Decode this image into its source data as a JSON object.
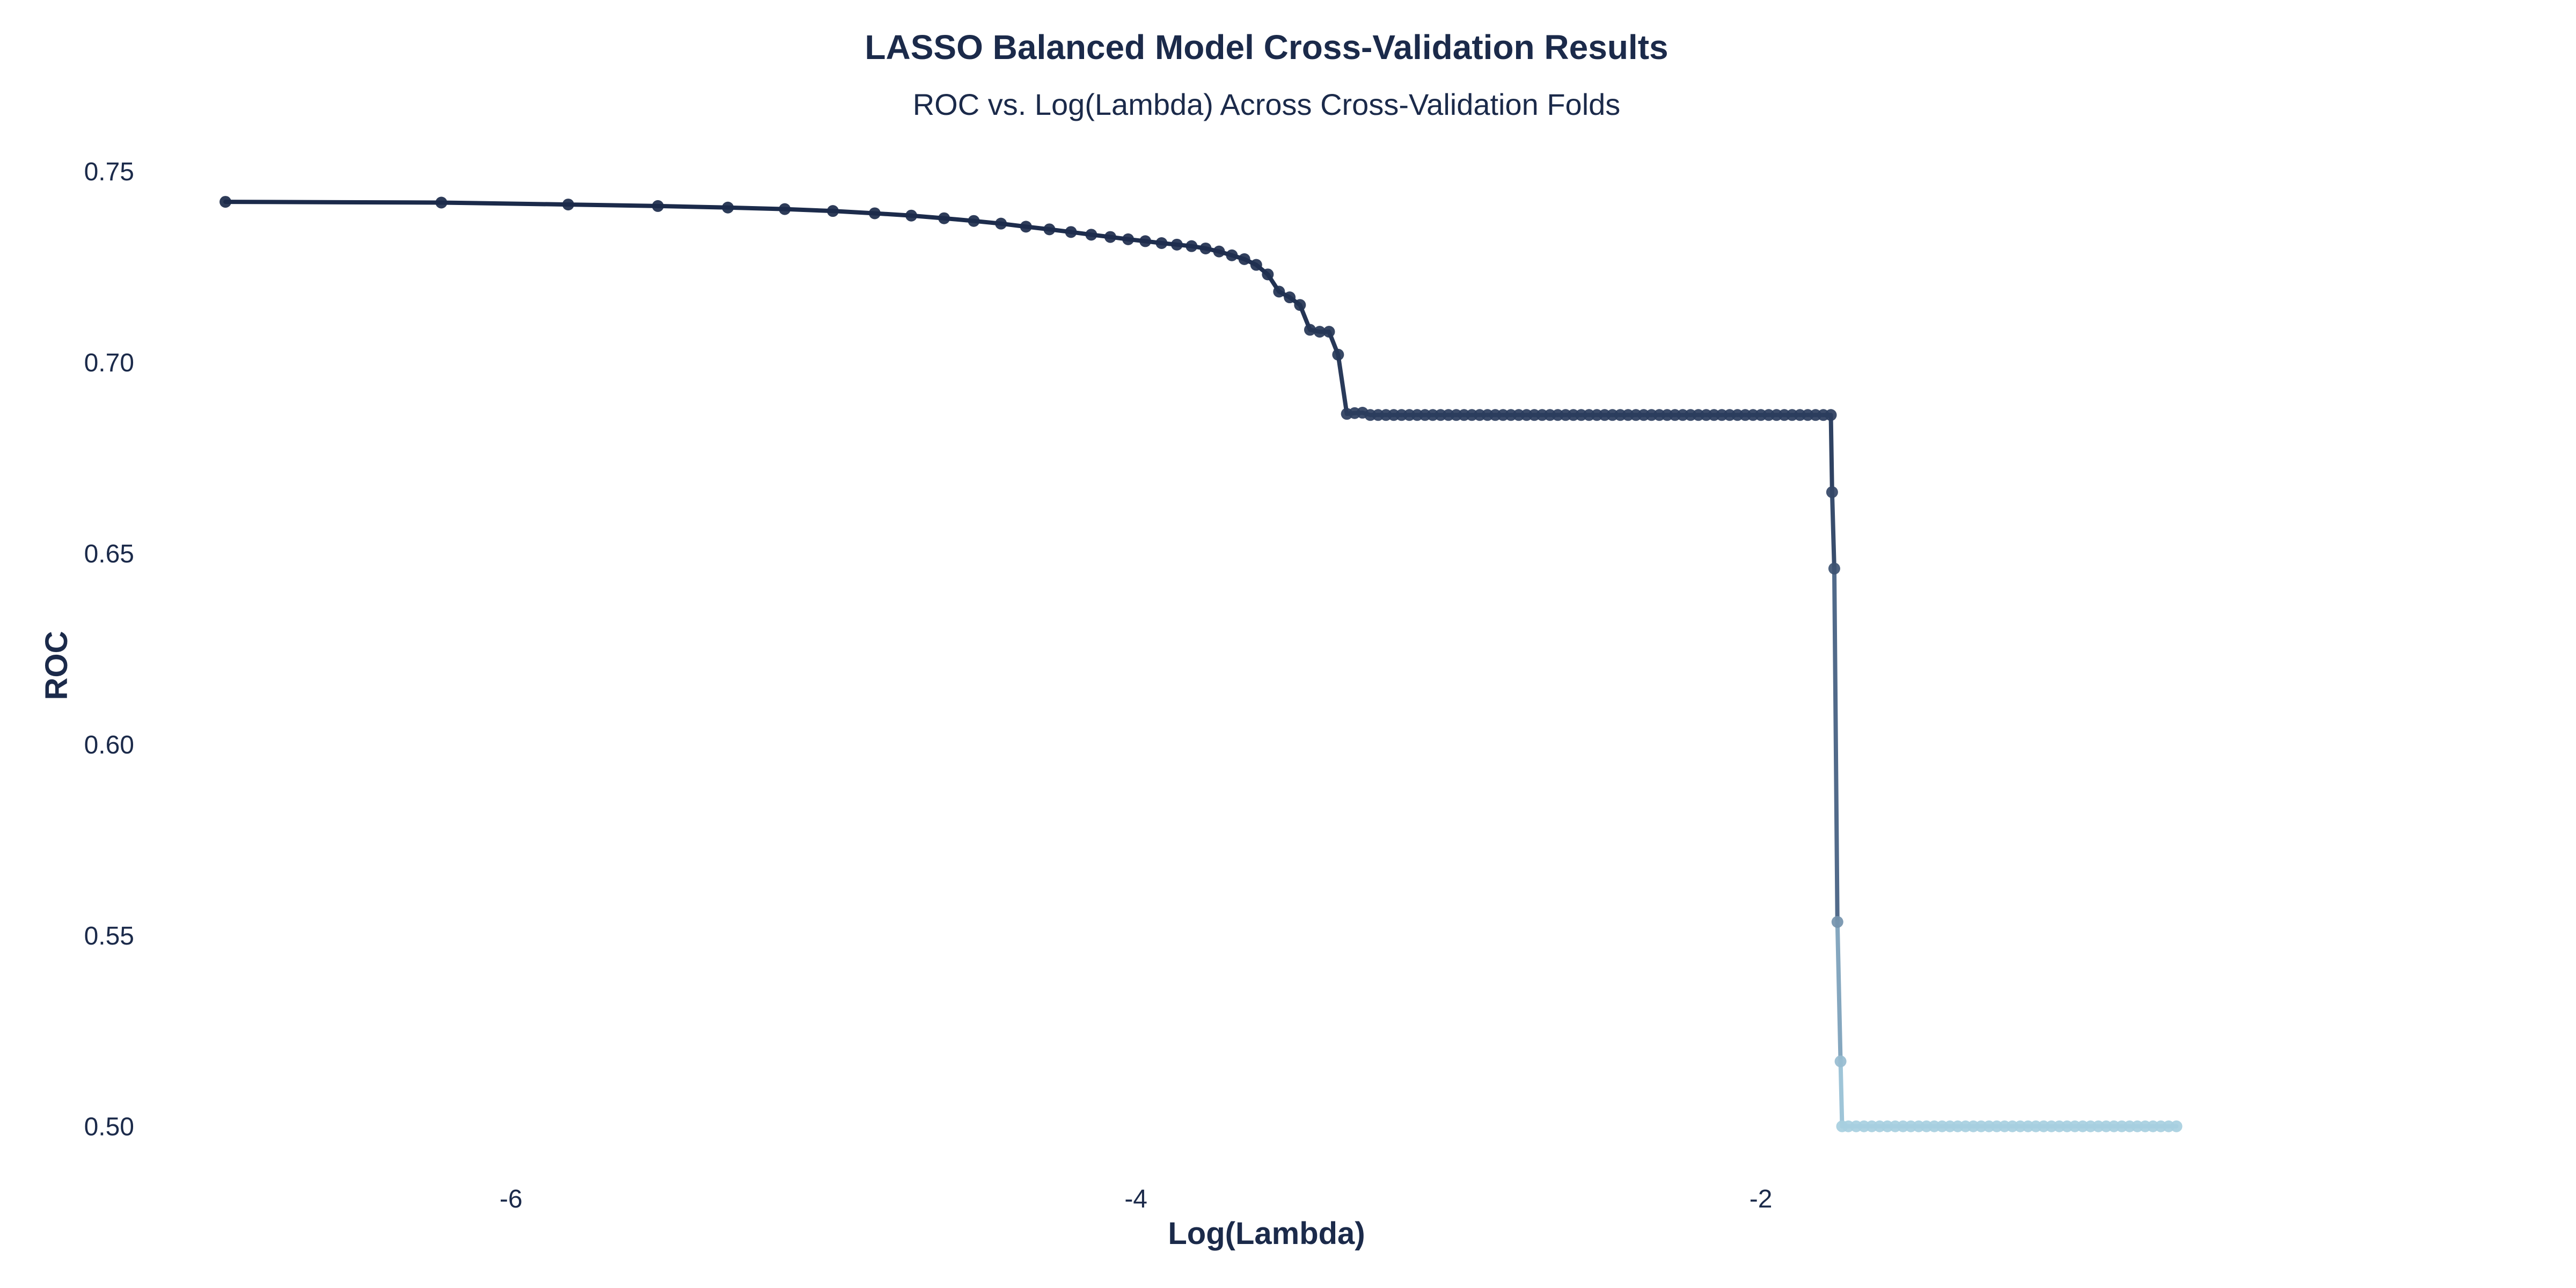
{
  "chart_data": {
    "type": "line",
    "title": "LASSO Balanced Model Cross-Validation Results",
    "subtitle": "ROC vs. Log(Lambda) Across Cross-Validation Folds",
    "xlabel": "Log(Lambda)",
    "ylabel": "ROC",
    "xlim": [
      -7.0,
      -0.25
    ],
    "ylim": [
      0.4935,
      0.7555
    ],
    "xticks": [
      -6,
      -4,
      -2
    ],
    "xtick_labels": [
      "-6",
      "-4",
      "-2"
    ],
    "yticks": [
      0.5,
      0.55,
      0.6,
      0.65,
      0.7,
      0.75
    ],
    "ytick_labels": [
      "0.50",
      "0.55",
      "0.60",
      "0.65",
      "0.70",
      "0.75"
    ],
    "grid": false,
    "legend": "none",
    "color_scale": {
      "high": "#1b2a4a",
      "mid": "#5a7494",
      "low": "#a7cfe0"
    },
    "x": [
      -6.914,
      -6.223,
      -5.817,
      -5.53,
      -5.306,
      -5.124,
      -4.97,
      -4.836,
      -4.719,
      -4.614,
      -4.519,
      -4.432,
      -4.352,
      -4.277,
      -4.208,
      -4.143,
      -4.082,
      -4.025,
      -3.97,
      -3.918,
      -3.869,
      -3.822,
      -3.777,
      -3.734,
      -3.693,
      -3.653,
      -3.615,
      -3.578,
      -3.542,
      -3.508,
      -3.475,
      -3.443,
      -3.412,
      -3.382,
      -3.353,
      -3.325,
      -3.3,
      -3.275,
      -3.25,
      -3.225,
      -3.2,
      -3.175,
      -3.15,
      -3.125,
      -3.1,
      -3.075,
      -3.05,
      -3.025,
      -3.0,
      -2.975,
      -2.95,
      -2.925,
      -2.9,
      -2.875,
      -2.85,
      -2.825,
      -2.8,
      -2.775,
      -2.75,
      -2.725,
      -2.7,
      -2.675,
      -2.65,
      -2.625,
      -2.6,
      -2.575,
      -2.55,
      -2.525,
      -2.5,
      -2.475,
      -2.45,
      -2.425,
      -2.4,
      -2.375,
      -2.35,
      -2.325,
      -2.3,
      -2.275,
      -2.25,
      -2.225,
      -2.2,
      -2.175,
      -2.15,
      -2.125,
      -2.1,
      -2.075,
      -2.05,
      -2.025,
      -2.0,
      -1.975,
      -1.95,
      -1.925,
      -1.9,
      -1.875,
      -1.85,
      -1.825,
      -1.8,
      -1.776,
      -1.772,
      -1.765,
      -1.755,
      -1.745,
      -1.74,
      -1.72,
      -1.695,
      -1.67,
      -1.645,
      -1.62,
      -1.595,
      -1.57,
      -1.545,
      -1.52,
      -1.495,
      -1.47,
      -1.445,
      -1.42,
      -1.395,
      -1.37,
      -1.345,
      -1.32,
      -1.295,
      -1.27,
      -1.245,
      -1.22,
      -1.195,
      -1.17,
      -1.145,
      -1.12,
      -1.095,
      -1.07,
      -1.045,
      -1.02,
      -0.995,
      -0.97,
      -0.945,
      -0.92,
      -0.895,
      -0.87,
      -0.845,
      -0.82,
      -0.795,
      -0.77,
      -0.745,
      -0.72,
      -0.695,
      -0.67
    ],
    "y": [
      0.742,
      0.7418,
      0.7413,
      0.7409,
      0.7405,
      0.7401,
      0.7396,
      0.739,
      0.7384,
      0.7377,
      0.737,
      0.7363,
      0.7355,
      0.7348,
      0.7341,
      0.7334,
      0.7328,
      0.7322,
      0.7317,
      0.7312,
      0.7308,
      0.7304,
      0.7298,
      0.729,
      0.728,
      0.727,
      0.7255,
      0.723,
      0.7185,
      0.717,
      0.715,
      0.7085,
      0.708,
      0.708,
      0.702,
      0.6865,
      0.6867,
      0.6868,
      0.6862,
      0.6862,
      0.6862,
      0.6862,
      0.6862,
      0.6862,
      0.6862,
      0.6862,
      0.6862,
      0.6862,
      0.6862,
      0.6862,
      0.6862,
      0.6862,
      0.6862,
      0.6862,
      0.6862,
      0.6862,
      0.6862,
      0.6862,
      0.6862,
      0.6862,
      0.6862,
      0.6862,
      0.6862,
      0.6862,
      0.6862,
      0.6862,
      0.6862,
      0.6862,
      0.6862,
      0.6862,
      0.6862,
      0.6862,
      0.6862,
      0.6862,
      0.6862,
      0.6862,
      0.6862,
      0.6862,
      0.6862,
      0.6862,
      0.6862,
      0.6862,
      0.6862,
      0.6862,
      0.6862,
      0.6862,
      0.6862,
      0.6862,
      0.6862,
      0.6862,
      0.6862,
      0.6862,
      0.6862,
      0.6862,
      0.6862,
      0.6862,
      0.6862,
      0.6862,
      0.666,
      0.646,
      0.5535,
      0.517,
      0.5,
      0.5,
      0.5,
      0.5,
      0.5,
      0.5,
      0.5,
      0.5,
      0.5,
      0.5,
      0.5,
      0.5,
      0.5,
      0.5,
      0.5,
      0.5,
      0.5,
      0.5,
      0.5,
      0.5,
      0.5,
      0.5,
      0.5,
      0.5,
      0.5,
      0.5,
      0.5,
      0.5,
      0.5,
      0.5,
      0.5,
      0.5,
      0.5,
      0.5,
      0.5,
      0.5,
      0.5,
      0.5,
      0.5,
      0.5,
      0.5,
      0.5,
      0.5,
      0.5
    ]
  }
}
